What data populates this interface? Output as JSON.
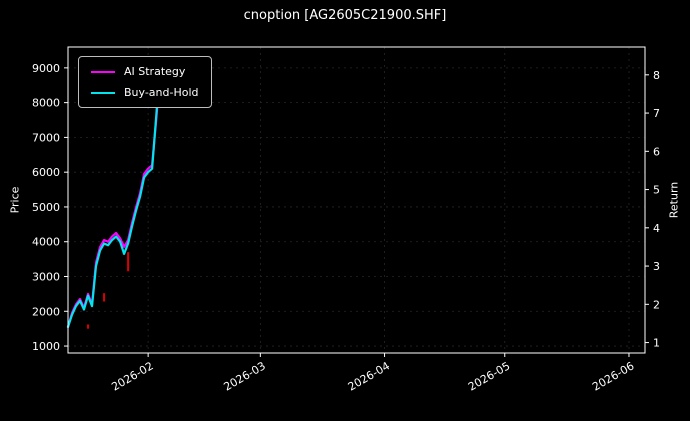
{
  "title": "cnoption [AG2605C21900.SHF]",
  "legend": {
    "items": [
      {
        "label": "AI Strategy",
        "color": "#ff00ff"
      },
      {
        "label": "Buy-and-Hold",
        "color": "#00e5ee"
      }
    ]
  },
  "axes": {
    "left": {
      "label": "Price",
      "ticks": [
        1000,
        2000,
        3000,
        4000,
        5000,
        6000,
        7000,
        8000,
        9000
      ],
      "range": [
        800,
        9600
      ]
    },
    "right": {
      "label": "Return",
      "ticks": [
        1,
        2,
        3,
        4,
        5,
        6,
        7,
        8
      ],
      "price_per_return": 1100
    },
    "x": {
      "start": "2026-01-12",
      "end": "2026-06-05",
      "ticks": [
        {
          "date": "2026-02-01",
          "label": "2026-02"
        },
        {
          "date": "2026-03-01",
          "label": "2026-03"
        },
        {
          "date": "2026-04-01",
          "label": "2026-04"
        },
        {
          "date": "2026-05-01",
          "label": "2026-05"
        },
        {
          "date": "2026-06-01",
          "label": "2026-06"
        }
      ]
    }
  },
  "colors": {
    "background": "#000000",
    "text": "#ffffff",
    "grid": "#262626",
    "spine": "#ffffff",
    "marker": "#dd0000"
  },
  "chart_data": {
    "type": "line",
    "title": "cnoption [AG2605C21900.SHF]",
    "xlabel": "",
    "ylabel": "Price",
    "y2label": "Return",
    "x": [
      "2026-01-12",
      "2026-01-13",
      "2026-01-14",
      "2026-01-15",
      "2026-01-16",
      "2026-01-17",
      "2026-01-18",
      "2026-01-19",
      "2026-01-20",
      "2026-01-21",
      "2026-01-22",
      "2026-01-23",
      "2026-01-24",
      "2026-01-25",
      "2026-01-26",
      "2026-01-27",
      "2026-01-28",
      "2026-01-29",
      "2026-01-30",
      "2026-01-31",
      "2026-02-01",
      "2026-02-02",
      "2026-02-03",
      "2026-02-04"
    ],
    "series": [
      {
        "name": "AI Strategy",
        "color": "#ff00ff",
        "values": [
          1550,
          1950,
          2200,
          2350,
          2100,
          2500,
          2200,
          3400,
          3850,
          4050,
          4000,
          4150,
          4250,
          4100,
          3850,
          4050,
          4550,
          5000,
          5400,
          5950,
          6100,
          6200,
          7500,
          8900
        ]
      },
      {
        "name": "Buy-and-Hold",
        "color": "#00e5ee",
        "values": [
          1550,
          1900,
          2150,
          2300,
          2050,
          2450,
          2150,
          3300,
          3750,
          3950,
          3900,
          4050,
          4150,
          4000,
          3650,
          3950,
          4450,
          4900,
          5300,
          5850,
          6000,
          6100,
          7600,
          9200
        ]
      }
    ],
    "trade_marks": [
      {
        "date": "2026-01-17",
        "low": 1500,
        "high": 1620
      },
      {
        "date": "2026-01-21",
        "low": 2280,
        "high": 2520
      },
      {
        "date": "2026-01-27",
        "low": 3150,
        "high": 3700
      }
    ],
    "legend_position": "upper-left",
    "grid": true
  }
}
